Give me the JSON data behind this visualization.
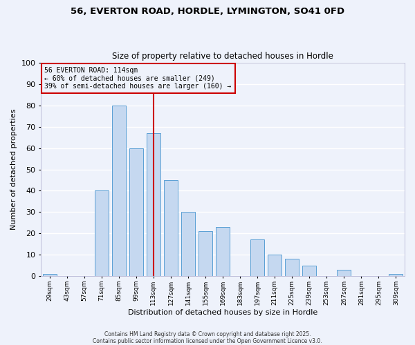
{
  "title1": "56, EVERTON ROAD, HORDLE, LYMINGTON, SO41 0FD",
  "title2": "Size of property relative to detached houses in Hordle",
  "xlabel": "Distribution of detached houses by size in Hordle",
  "ylabel": "Number of detached properties",
  "bins": [
    "29sqm",
    "43sqm",
    "57sqm",
    "71sqm",
    "85sqm",
    "99sqm",
    "113sqm",
    "127sqm",
    "141sqm",
    "155sqm",
    "169sqm",
    "183sqm",
    "197sqm",
    "211sqm",
    "225sqm",
    "239sqm",
    "253sqm",
    "267sqm",
    "281sqm",
    "295sqm",
    "309sqm"
  ],
  "bar_values": [
    1,
    0,
    0,
    40,
    80,
    60,
    67,
    45,
    30,
    21,
    23,
    0,
    17,
    10,
    8,
    5,
    0,
    3,
    0,
    0,
    1
  ],
  "bar_color": "#c5d8f0",
  "bar_edge_color": "#5a9fd4",
  "vline_x": 6,
  "vline_color": "#cc0000",
  "annotation_title": "56 EVERTON ROAD: 114sqm",
  "annotation_line1": "← 60% of detached houses are smaller (249)",
  "annotation_line2": "39% of semi-detached houses are larger (160) →",
  "annotation_box_color": "#cc0000",
  "ylim": [
    0,
    100
  ],
  "yticks": [
    0,
    10,
    20,
    30,
    40,
    50,
    60,
    70,
    80,
    90,
    100
  ],
  "footnote1": "Contains HM Land Registry data © Crown copyright and database right 2025.",
  "footnote2": "Contains public sector information licensed under the Open Government Licence v3.0.",
  "bg_color": "#eef2fb",
  "grid_color": "#ffffff"
}
